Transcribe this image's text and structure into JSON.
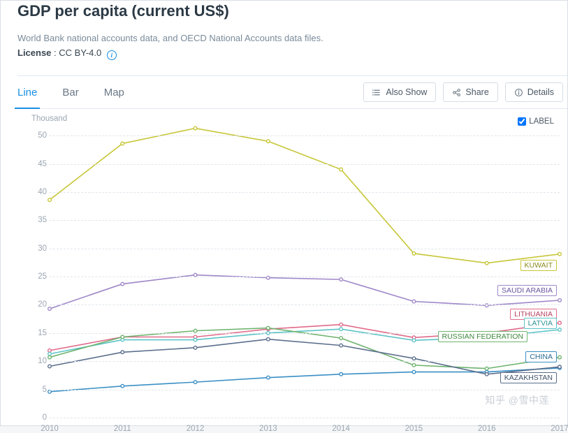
{
  "header": {
    "title": "GDP per capita (current US$)",
    "subtitle": "World Bank national accounts data, and OECD National Accounts data files.",
    "license_label": "License",
    "license_value": "CC BY-4.0"
  },
  "tabs": {
    "items": [
      {
        "label": "Line",
        "active": true
      },
      {
        "label": "Bar",
        "active": false
      },
      {
        "label": "Map",
        "active": false
      }
    ]
  },
  "toolbar": {
    "also_show": "Also Show",
    "share": "Share",
    "details": "Details"
  },
  "chart": {
    "type": "line",
    "y_axis_title": "Thousand",
    "label_checkbox": "LABEL",
    "label_checked": true,
    "background_color": "#ffffff",
    "grid_color": "#dfe5eb",
    "tick_color": "#9aa6b2",
    "tick_fontsize": 11.5,
    "xlim": [
      2010,
      2017
    ],
    "xtick_step": 1,
    "ylim": [
      0,
      52
    ],
    "yticks": [
      0,
      5,
      10,
      15,
      20,
      25,
      30,
      35,
      40,
      45,
      50
    ],
    "marker_radius": 2.3,
    "line_width": 1.6,
    "years": [
      2010,
      2011,
      2012,
      2013,
      2014,
      2015,
      2016,
      2017
    ],
    "series": [
      {
        "name": "KUWAIT",
        "color": "#c7c637",
        "label_border": "#c7c637",
        "label_text": "#8a8a1f",
        "values": [
          38.6,
          48.6,
          51.3,
          49.0,
          44.0,
          29.1,
          27.4,
          29.0
        ]
      },
      {
        "name": "SAUDI ARABIA",
        "color": "#9e87c9",
        "label_border": "#9e87c9",
        "label_text": "#6a55a0",
        "values": [
          19.3,
          23.7,
          25.3,
          24.8,
          24.5,
          20.6,
          19.9,
          20.8
        ]
      },
      {
        "name": "LITHUANIA",
        "color": "#e06a8a",
        "label_border": "#e06a8a",
        "label_text": "#b8415f",
        "values": [
          11.9,
          14.3,
          14.3,
          15.7,
          16.5,
          14.2,
          15.0,
          16.8
        ]
      },
      {
        "name": "LATVIA",
        "color": "#5dc3c7",
        "label_border": "#5dc3c7",
        "label_text": "#2f9497",
        "values": [
          11.3,
          13.8,
          13.8,
          15.0,
          15.7,
          13.7,
          14.2,
          15.6
        ]
      },
      {
        "name": "RUSSIAN FEDERATION",
        "color": "#6fb36f",
        "label_border": "#6fb36f",
        "label_text": "#3d8a3d",
        "values": [
          10.7,
          14.3,
          15.4,
          15.9,
          14.1,
          9.3,
          8.7,
          10.7
        ]
      },
      {
        "name": "CHINA",
        "color": "#3a8fc4",
        "label_border": "#3a8fc4",
        "label_text": "#2a6a94",
        "values": [
          4.6,
          5.6,
          6.3,
          7.1,
          7.7,
          8.1,
          8.1,
          8.8
        ]
      },
      {
        "name": "KAZAKHSTAN",
        "color": "#5b6e8c",
        "label_border": "#5b6e8c",
        "label_text": "#41526b",
        "values": [
          9.1,
          11.6,
          12.4,
          13.9,
          12.8,
          10.5,
          7.7,
          9.0
        ]
      }
    ],
    "series_label_positions": [
      {
        "name": "KUWAIT",
        "right": 4,
        "y_value": 27.0
      },
      {
        "name": "SAUDI ARABIA",
        "right": 4,
        "y_value": 22.5
      },
      {
        "name": "LITHUANIA",
        "right": 4,
        "y_value": 18.3
      },
      {
        "name": "LATVIA",
        "right": 4,
        "y_value": 16.7
      },
      {
        "name": "RUSSIAN FEDERATION",
        "right": 46,
        "y_value": 14.4
      },
      {
        "name": "CHINA",
        "right": 4,
        "y_value": 10.8
      },
      {
        "name": "KAZAKHSTAN",
        "right": 4,
        "y_value": 7.1
      }
    ]
  },
  "watermark": "知乎 @雪中莲"
}
